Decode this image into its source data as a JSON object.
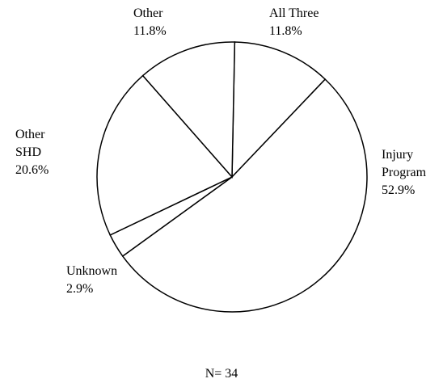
{
  "chart_data": {
    "type": "pie",
    "categories": [
      "All Three",
      "Injury Program",
      "Unknown",
      "Other SHD",
      "Other"
    ],
    "values": [
      11.8,
      52.9,
      2.9,
      20.6,
      11.8
    ],
    "value_labels": [
      "11.8%",
      "52.9%",
      "2.9%",
      "20.6%",
      "11.8%"
    ],
    "color": "#ffffff",
    "annotation": "N= 34"
  }
}
